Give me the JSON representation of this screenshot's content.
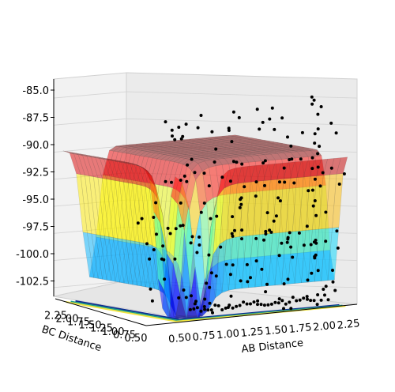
{
  "chart_data": {
    "type": "surface3d",
    "title": "",
    "xlabel": "AB Distance",
    "ylabel": "BC Distance",
    "zlabel": "",
    "x_ticks": [
      "0.50",
      "0.75",
      "1.00",
      "1.25",
      "1.50",
      "1.75",
      "2.00",
      "2.25"
    ],
    "y_ticks": [
      "0.50",
      "0.75",
      "1.00",
      "1.25",
      "1.50",
      "1.75",
      "2.00",
      "2.25"
    ],
    "z_ticks": [
      "-85.0",
      "-87.5",
      "-90.0",
      "-92.5",
      "-95.0",
      "-97.5",
      "-100.0",
      "-102.5"
    ],
    "xlim": [
      0.5,
      2.3
    ],
    "ylim": [
      0.5,
      2.3
    ],
    "zlim": [
      -104,
      -84.5
    ],
    "surface": {
      "colormap": "jet",
      "alpha": 0.5,
      "plateau_z": -90.0,
      "min_z": -104.0,
      "valley": "L-shaped minimum along BC≈0.75 and AB≈0.75"
    },
    "contour": {
      "plane_z": -104.0,
      "colors": [
        "#0d2a8f",
        "#1f9e89",
        "#f0e442"
      ]
    },
    "scatter": {
      "color": "#000000",
      "description": "trajectory points above the surface",
      "points_z_range": [
        -104.0,
        -85.0
      ]
    },
    "grid": true
  }
}
